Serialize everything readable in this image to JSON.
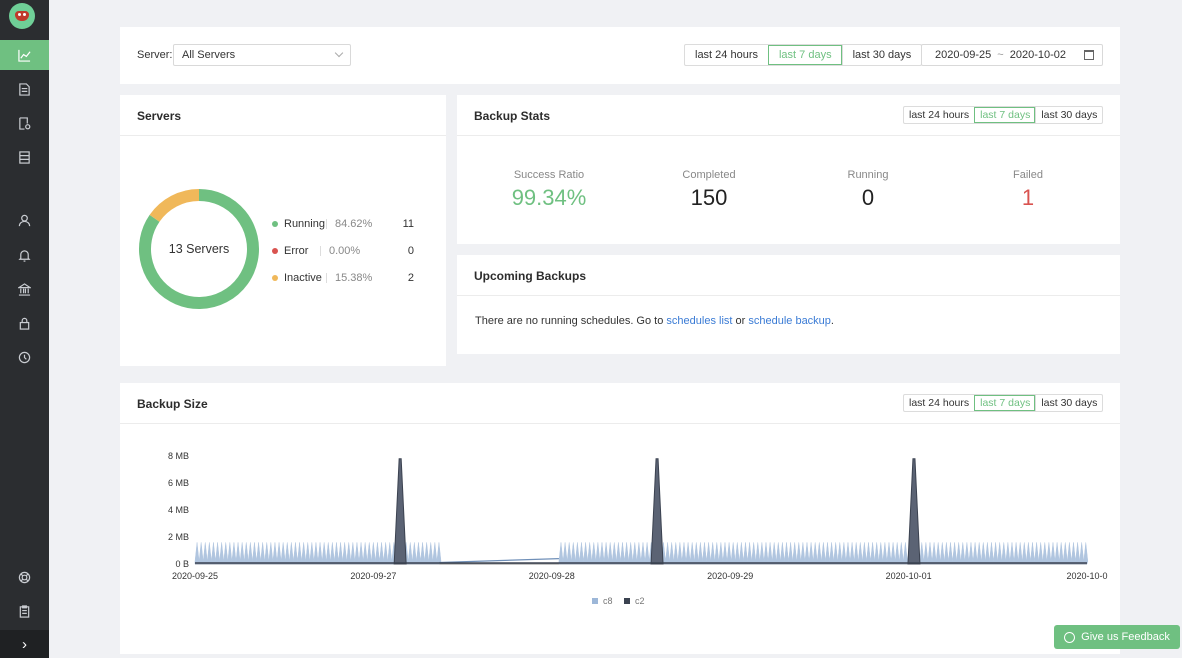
{
  "nav": {
    "items": [
      {
        "name": "dashboard",
        "icon": "chart-line-icon"
      },
      {
        "name": "backups",
        "icon": "document-icon"
      },
      {
        "name": "restores",
        "icon": "file-settings-icon"
      },
      {
        "name": "storage",
        "icon": "list-icon"
      },
      {
        "name": "users",
        "icon": "user-icon"
      },
      {
        "name": "alerts",
        "icon": "bell-icon"
      },
      {
        "name": "vault",
        "icon": "bank-icon"
      },
      {
        "name": "security",
        "icon": "lock-icon"
      },
      {
        "name": "history",
        "icon": "clock-icon"
      },
      {
        "name": "support",
        "icon": "lifebuoy-icon"
      },
      {
        "name": "docs",
        "icon": "clipboard-icon"
      }
    ],
    "expand": "›"
  },
  "filter": {
    "server_label": "Server:",
    "server_value": "All Servers",
    "ranges": [
      "last 24 hours",
      "last 7 days",
      "last 30 days"
    ],
    "selected_range": 1,
    "date_from": "2020-09-25",
    "date_sep": "~",
    "date_to": "2020-10-02"
  },
  "servers": {
    "title": "Servers",
    "center_label": "13 Servers",
    "items": [
      {
        "name": "Running",
        "pct": "84.62%",
        "count": "11",
        "color": "#6fc081",
        "value": 11
      },
      {
        "name": "Error",
        "pct": "0.00%",
        "count": "0",
        "color": "#d9534f",
        "value": 0
      },
      {
        "name": "Inactive",
        "pct": "15.38%",
        "count": "2",
        "color": "#f0b85a",
        "value": 2
      }
    ]
  },
  "backup_stats": {
    "title": "Backup Stats",
    "ranges": [
      "last 24 hours",
      "last 7 days",
      "last 30 days"
    ],
    "selected_range": 1,
    "stats": [
      {
        "label": "Success Ratio",
        "value": "99.34%",
        "color": "#6fc081"
      },
      {
        "label": "Completed",
        "value": "150",
        "color": "#222222"
      },
      {
        "label": "Running",
        "value": "0",
        "color": "#222222"
      },
      {
        "label": "Failed",
        "value": "1",
        "color": "#d9534f"
      }
    ]
  },
  "upcoming": {
    "title": "Upcoming Backups",
    "text_before": "There are no running schedules. Go to ",
    "link1": "schedules list",
    "text_mid": " or ",
    "link2": "schedule backup",
    "text_after": "."
  },
  "backup_size": {
    "title": "Backup Size",
    "ranges": [
      "last 24 hours",
      "last 7 days",
      "last 30 days"
    ],
    "selected_range": 1
  },
  "chart_data": {
    "type": "area",
    "yticks": [
      "8 MB",
      "6 MB",
      "4 MB",
      "2 MB",
      "0 B"
    ],
    "ylim": [
      0,
      8
    ],
    "xticks": [
      "2020-09-25",
      "2020-09-27",
      "2020-09-28",
      "2020-09-29",
      "2020-10-01",
      "2020-10-0"
    ],
    "xlim_days": [
      0,
      5
    ],
    "series": [
      {
        "name": "c8",
        "color": "#9db7d8",
        "baseline": 1.6,
        "segments": [
          [
            0,
            1.37
          ],
          [
            2.04,
            5
          ]
        ]
      },
      {
        "name": "c2",
        "color": "#3b4250",
        "spikes": [
          {
            "x": 1.15,
            "y": 7.8
          },
          {
            "x": 2.59,
            "y": 7.8
          },
          {
            "x": 4.03,
            "y": 7.8
          }
        ]
      }
    ]
  },
  "feedback": {
    "label": "Give us Feedback"
  }
}
